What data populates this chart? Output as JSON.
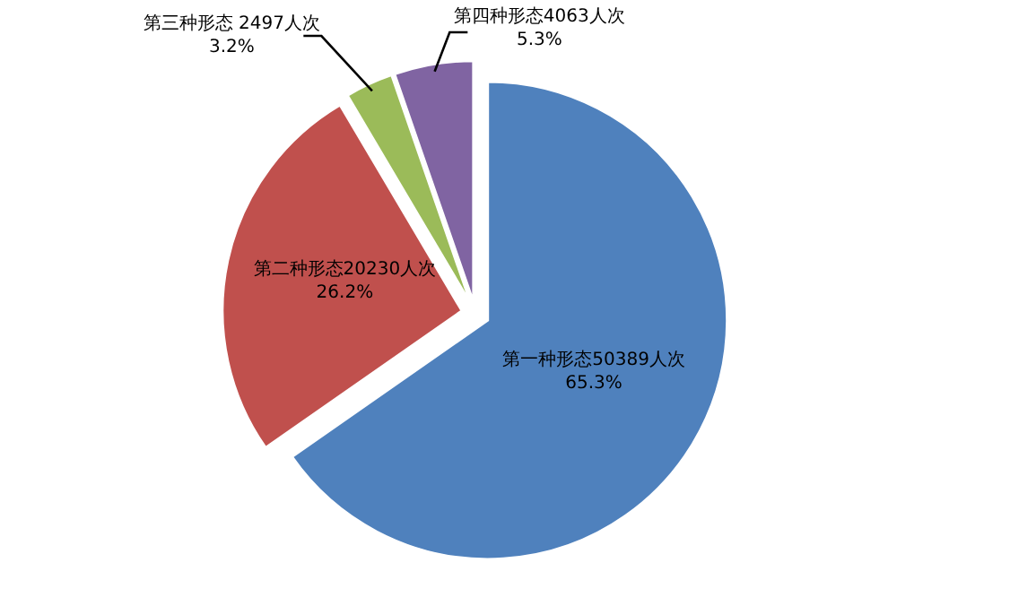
{
  "chart_data": {
    "type": "pie",
    "categories": [
      "第一种形态50389人次",
      "第二种形态20230人次",
      "第三种形态 2497人次",
      "第四种形态4063人次"
    ],
    "values": [
      65.3,
      26.2,
      3.2,
      5.3
    ],
    "colors": [
      "#4f81bd",
      "#c0504d",
      "#9bbb59",
      "#8064a2"
    ],
    "value_labels": [
      "65.3%",
      "26.2%",
      "3.2%",
      "5.3%"
    ]
  }
}
